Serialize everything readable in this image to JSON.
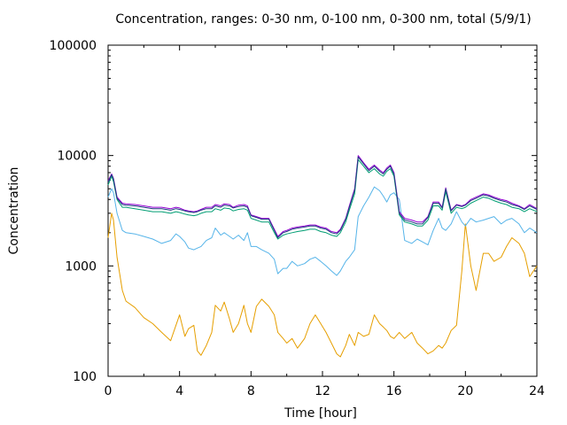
{
  "chart_data": {
    "type": "line",
    "title": "Concentration, ranges: 0-30 nm, 0-100 nm, 0-300 nm, total (5/9/1)",
    "xlabel": "Time [hour]",
    "ylabel": "Concentration",
    "xlim": [
      0,
      24
    ],
    "ylim": [
      100,
      100000
    ],
    "y_scale": "log",
    "grid": false,
    "x_ticks": [
      0,
      4,
      8,
      12,
      16,
      20,
      24
    ],
    "x_tick_labels": [
      "0",
      "4",
      "8",
      "12",
      "16",
      "20",
      "24"
    ],
    "y_ticks": [
      100,
      1000,
      10000,
      100000
    ],
    "y_tick_labels": [
      "100",
      "1000",
      "10000",
      "100000"
    ],
    "x": [
      0,
      0.2,
      0.3,
      0.5,
      0.8,
      1,
      1.5,
      2,
      2.5,
      3,
      3.5,
      3.8,
      4,
      4.3,
      4.5,
      4.8,
      5,
      5.2,
      5.5,
      5.8,
      6,
      6.3,
      6.5,
      6.8,
      7,
      7.3,
      7.6,
      7.8,
      8,
      8.3,
      8.6,
      9,
      9.3,
      9.5,
      9.8,
      10,
      10.3,
      10.6,
      11,
      11.3,
      11.6,
      11.9,
      12.2,
      12.5,
      12.8,
      13,
      13.3,
      13.5,
      13.8,
      14,
      14.3,
      14.6,
      14.9,
      15.2,
      15.4,
      15.6,
      15.8,
      16,
      16.3,
      16.6,
      17,
      17.3,
      17.6,
      17.9,
      18.2,
      18.5,
      18.7,
      18.9,
      19.2,
      19.5,
      19.8,
      20,
      20.3,
      20.6,
      21,
      21.3,
      21.6,
      22,
      22.3,
      22.6,
      23,
      23.3,
      23.6,
      24
    ],
    "colors": [
      "#e69f00",
      "#56b4e9",
      "#009e73",
      "#9400d3",
      "#1f3f7f"
    ],
    "series": [
      {
        "values": [
          1800,
          3000,
          2600,
          1200,
          600,
          480,
          420,
          340,
          300,
          250,
          210,
          290,
          360,
          230,
          270,
          290,
          170,
          155,
          190,
          250,
          440,
          390,
          470,
          330,
          250,
          300,
          440,
          300,
          250,
          430,
          500,
          430,
          360,
          250,
          220,
          200,
          220,
          180,
          220,
          300,
          360,
          300,
          250,
          200,
          160,
          150,
          190,
          240,
          190,
          250,
          230,
          240,
          360,
          300,
          280,
          260,
          230,
          220,
          250,
          220,
          250,
          200,
          180,
          160,
          170,
          190,
          180,
          200,
          260,
          290,
          900,
          2400,
          1000,
          600,
          1300,
          1300,
          1100,
          1200,
          1500,
          1800,
          1600,
          1300,
          800,
          1000
        ]
      },
      {
        "values": [
          4200,
          5000,
          4600,
          3000,
          2100,
          2000,
          1950,
          1850,
          1750,
          1600,
          1700,
          1950,
          1850,
          1650,
          1450,
          1400,
          1450,
          1500,
          1700,
          1800,
          2200,
          1900,
          2000,
          1850,
          1750,
          1900,
          1700,
          2000,
          1500,
          1500,
          1400,
          1300,
          1150,
          850,
          950,
          950,
          1100,
          1000,
          1050,
          1150,
          1200,
          1100,
          1000,
          900,
          820,
          900,
          1100,
          1200,
          1400,
          2800,
          3500,
          4200,
          5200,
          4800,
          4300,
          3800,
          4400,
          4600,
          4000,
          1700,
          1600,
          1750,
          1650,
          1550,
          2100,
          2700,
          2200,
          2100,
          2400,
          3100,
          2500,
          2300,
          2700,
          2500,
          2600,
          2700,
          2800,
          2400,
          2600,
          2700,
          2400,
          2000,
          2200,
          2000
        ]
      },
      {
        "values": [
          5400,
          6500,
          5800,
          4000,
          3400,
          3400,
          3300,
          3200,
          3100,
          3100,
          3000,
          3100,
          3050,
          2950,
          2900,
          2850,
          2900,
          3000,
          3100,
          3100,
          3300,
          3200,
          3350,
          3300,
          3150,
          3250,
          3300,
          3200,
          2700,
          2600,
          2500,
          2500,
          2000,
          1750,
          1900,
          1950,
          2000,
          2050,
          2100,
          2150,
          2150,
          2050,
          2000,
          1900,
          1850,
          2000,
          2500,
          3200,
          4500,
          9200,
          8000,
          7000,
          7600,
          6800,
          6500,
          7200,
          7600,
          6500,
          2900,
          2500,
          2400,
          2300,
          2300,
          2600,
          3500,
          3500,
          3200,
          4700,
          3000,
          3400,
          3300,
          3400,
          3700,
          3900,
          4200,
          4100,
          3900,
          3700,
          3600,
          3400,
          3300,
          3100,
          3300,
          3100
        ]
      },
      {
        "values": [
          5900,
          6800,
          6200,
          4200,
          3700,
          3650,
          3600,
          3500,
          3400,
          3400,
          3300,
          3400,
          3350,
          3200,
          3150,
          3100,
          3150,
          3250,
          3400,
          3400,
          3600,
          3500,
          3650,
          3600,
          3400,
          3550,
          3600,
          3500,
          2900,
          2800,
          2700,
          2700,
          2150,
          1850,
          2050,
          2100,
          2200,
          2250,
          2300,
          2350,
          2350,
          2250,
          2200,
          2050,
          2000,
          2150,
          2700,
          3500,
          5000,
          10000,
          8600,
          7500,
          8200,
          7400,
          7000,
          7700,
          8200,
          7000,
          3100,
          2700,
          2600,
          2500,
          2500,
          2800,
          3800,
          3800,
          3400,
          5100,
          3200,
          3600,
          3500,
          3600,
          4000,
          4200,
          4500,
          4400,
          4200,
          4000,
          3900,
          3700,
          3500,
          3300,
          3600,
          3300
        ]
      },
      {
        "values": [
          5700,
          6700,
          6100,
          4100,
          3600,
          3550,
          3500,
          3400,
          3300,
          3300,
          3200,
          3300,
          3250,
          3150,
          3100,
          3050,
          3100,
          3200,
          3300,
          3300,
          3500,
          3400,
          3550,
          3500,
          3350,
          3450,
          3500,
          3400,
          2850,
          2750,
          2650,
          2650,
          2100,
          1800,
          2000,
          2050,
          2150,
          2200,
          2250,
          2300,
          2300,
          2200,
          2150,
          2000,
          1950,
          2100,
          2650,
          3400,
          4850,
          9700,
          8400,
          7300,
          8000,
          7200,
          6800,
          7500,
          8000,
          6800,
          3000,
          2600,
          2500,
          2400,
          2400,
          2750,
          3700,
          3700,
          3350,
          5000,
          3150,
          3550,
          3450,
          3550,
          3900,
          4100,
          4400,
          4300,
          4100,
          3900,
          3800,
          3600,
          3450,
          3250,
          3500,
          3250
        ]
      }
    ]
  }
}
